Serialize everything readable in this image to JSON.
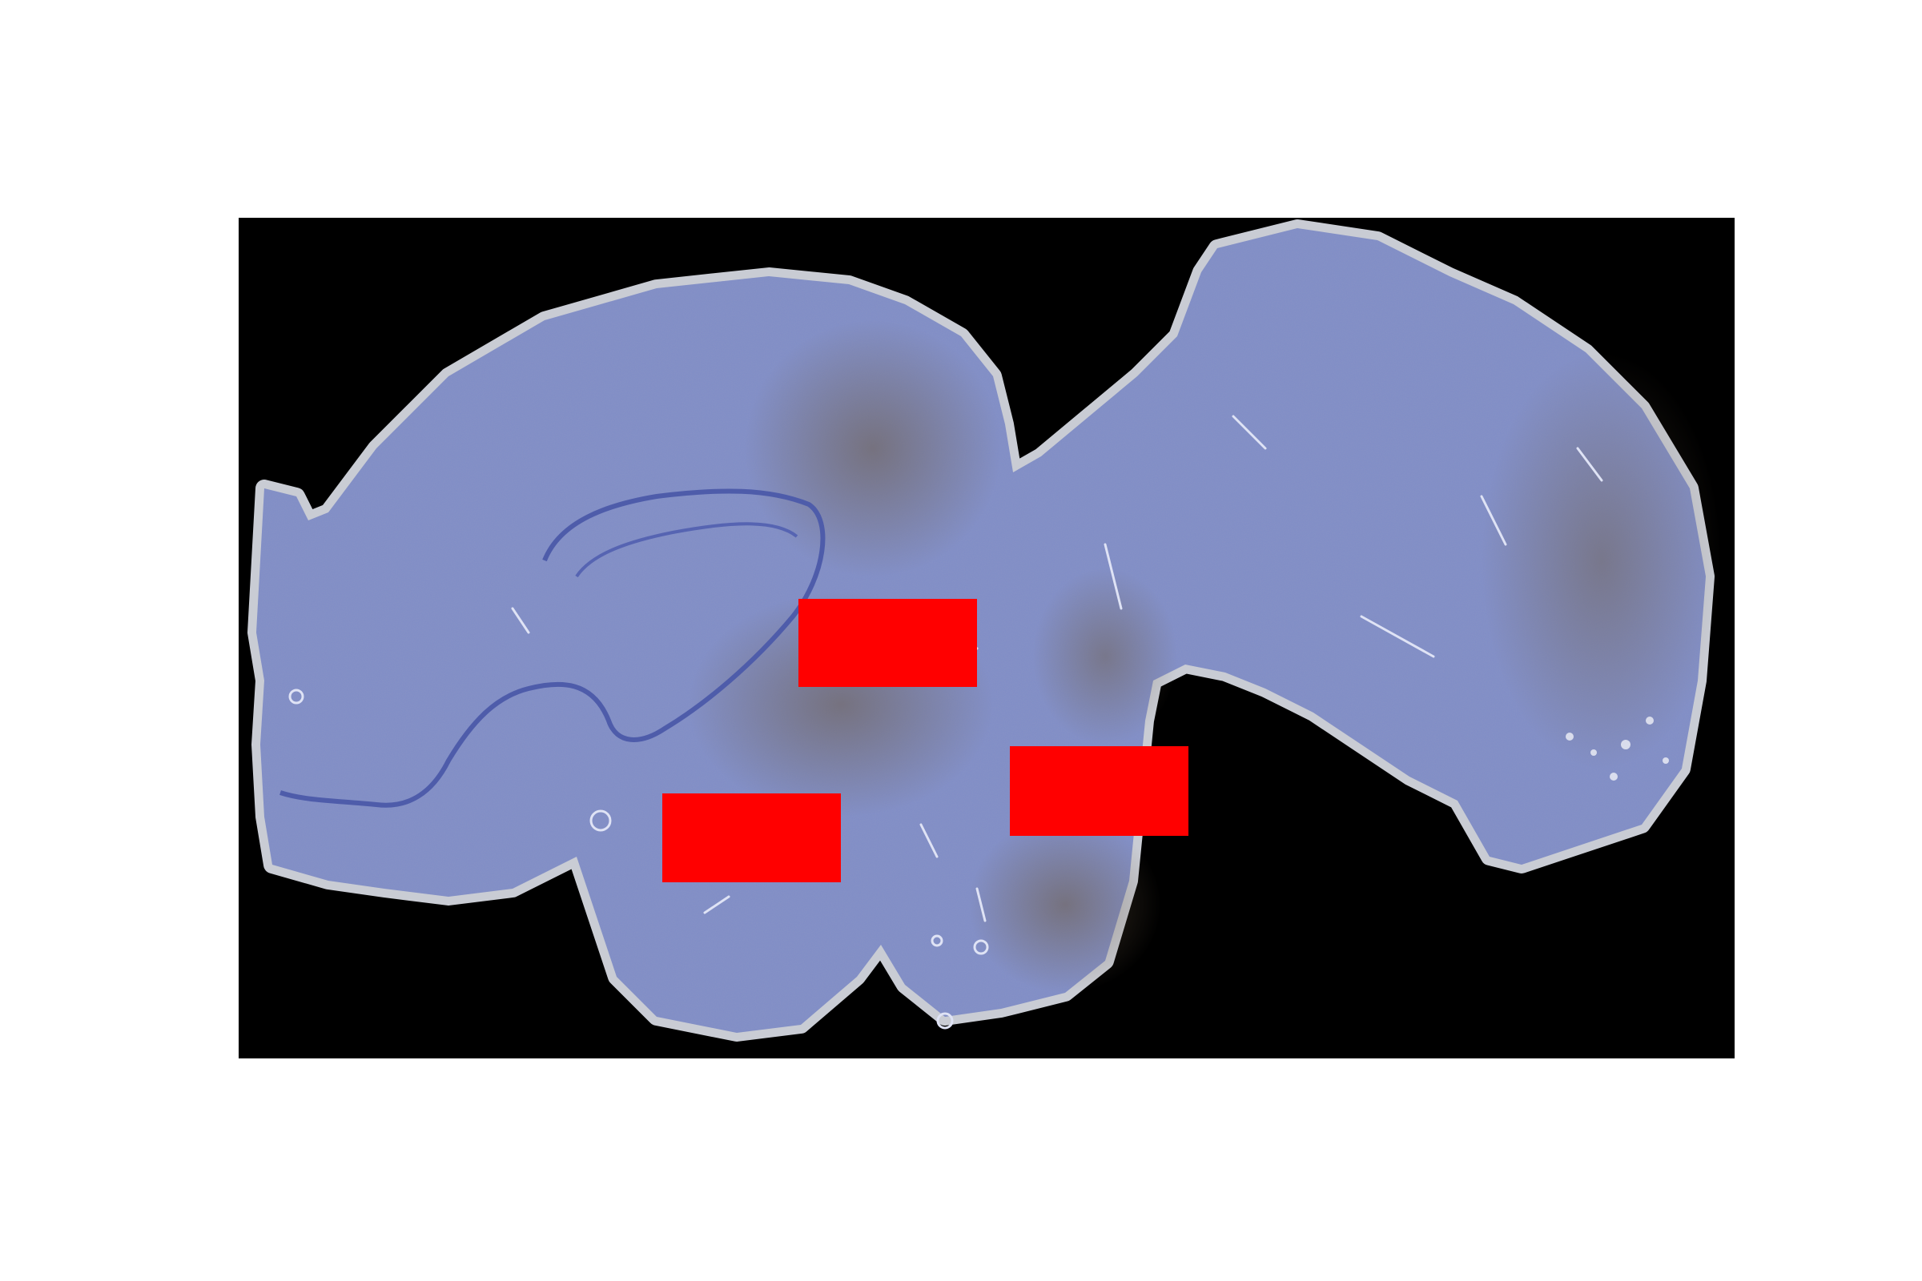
{
  "image": {
    "background_color": "#ffffff",
    "panel_color": "#000000",
    "tissue_stain_color": "#7f8dc6",
    "tissue_outline_color": "#c9ccd4",
    "brown_stain_color": "#6b5a45",
    "redaction_color": "#ff0000"
  },
  "redactions": [
    {
      "label": ""
    },
    {
      "label": ""
    },
    {
      "label": ""
    }
  ]
}
